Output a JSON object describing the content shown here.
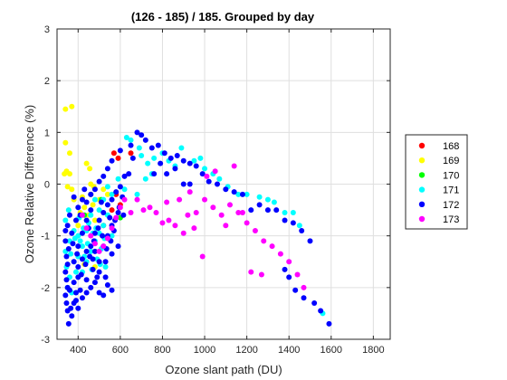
{
  "chart_data": {
    "type": "scatter",
    "title": "(126 - 185) / 185.  Grouped by day",
    "xlabel": "Ozone slant path (DU)",
    "ylabel": "Ozone Relative Difference (%)",
    "xlim": [
      300,
      1880
    ],
    "ylim": [
      -3,
      3
    ],
    "xticks": [
      400,
      600,
      800,
      1000,
      1200,
      1400,
      1600,
      1800
    ],
    "yticks": [
      -3,
      -2,
      -1,
      0,
      1,
      2,
      3
    ],
    "grid": true,
    "legend_position": "right-outside",
    "series": [
      {
        "name": "168",
        "color": "#ff0000",
        "points": [
          [
            570,
            0.6
          ],
          [
            590,
            0.5
          ],
          [
            650,
            0.6
          ],
          [
            560,
            -0.5
          ],
          [
            580,
            -0.2
          ],
          [
            600,
            -0.4
          ],
          [
            520,
            -0.8
          ]
        ]
      },
      {
        "name": "169",
        "color": "#ffff00",
        "points": [
          [
            340,
            1.45
          ],
          [
            370,
            1.5
          ],
          [
            340,
            0.8
          ],
          [
            360,
            0.6
          ],
          [
            345,
            0.25
          ],
          [
            360,
            0.2
          ],
          [
            335,
            0.2
          ],
          [
            350,
            -0.05
          ],
          [
            370,
            -0.1
          ],
          [
            430,
            -0.45
          ],
          [
            450,
            -0.6
          ],
          [
            470,
            -0.4
          ],
          [
            460,
            0.0
          ],
          [
            420,
            -0.25
          ],
          [
            440,
            0.4
          ],
          [
            480,
            -0.7
          ],
          [
            500,
            -0.3
          ],
          [
            520,
            -0.1
          ],
          [
            540,
            -0.2
          ],
          [
            400,
            -0.8
          ],
          [
            380,
            -0.3
          ],
          [
            410,
            -0.55
          ],
          [
            455,
            0.3
          ],
          [
            475,
            -0.05
          ],
          [
            430,
            -1.55
          ],
          [
            480,
            -1.6
          ]
        ]
      },
      {
        "name": "170",
        "color": "#00ff00",
        "points": [
          [
            600,
            -0.65
          ],
          [
            510,
            -0.3
          ],
          [
            460,
            -0.2
          ],
          [
            430,
            -0.6
          ]
        ]
      },
      {
        "name": "171",
        "color": "#00ffff",
        "points": [
          [
            630,
            0.9
          ],
          [
            650,
            0.85
          ],
          [
            690,
            0.7
          ],
          [
            700,
            0.55
          ],
          [
            730,
            0.4
          ],
          [
            760,
            0.5
          ],
          [
            800,
            0.6
          ],
          [
            830,
            0.45
          ],
          [
            860,
            0.35
          ],
          [
            890,
            0.7
          ],
          [
            950,
            0.45
          ],
          [
            980,
            0.5
          ],
          [
            1000,
            0.3
          ],
          [
            1040,
            0.2
          ],
          [
            1070,
            0.1
          ],
          [
            1110,
            -0.05
          ],
          [
            1160,
            -0.2
          ],
          [
            1200,
            -0.2
          ],
          [
            1260,
            -0.25
          ],
          [
            1300,
            -0.3
          ],
          [
            1330,
            -0.35
          ],
          [
            1380,
            -0.55
          ],
          [
            1420,
            -0.55
          ],
          [
            1450,
            -0.8
          ],
          [
            1560,
            -2.5
          ],
          [
            720,
            0.1
          ],
          [
            750,
            0.2
          ],
          [
            680,
            -0.2
          ],
          [
            620,
            -0.1
          ],
          [
            590,
            0.1
          ],
          [
            560,
            -0.2
          ],
          [
            540,
            -0.05
          ],
          [
            520,
            -0.3
          ],
          [
            500,
            -0.5
          ],
          [
            480,
            -0.3
          ],
          [
            460,
            -0.6
          ],
          [
            440,
            -0.9
          ],
          [
            420,
            -1.2
          ],
          [
            400,
            -1.0
          ],
          [
            380,
            -1.5
          ],
          [
            360,
            -1.8
          ],
          [
            350,
            -2.0
          ],
          [
            340,
            -1.3
          ],
          [
            360,
            -1.1
          ],
          [
            380,
            -0.9
          ],
          [
            400,
            -1.4
          ],
          [
            420,
            -1.7
          ],
          [
            440,
            -1.5
          ],
          [
            460,
            -1.3
          ],
          [
            480,
            -1.1
          ],
          [
            500,
            -0.95
          ],
          [
            520,
            -0.8
          ],
          [
            540,
            -0.6
          ],
          [
            560,
            -1.0
          ],
          [
            340,
            -0.7
          ],
          [
            355,
            -0.5
          ],
          [
            370,
            -2.1
          ],
          [
            390,
            -1.7
          ],
          [
            410,
            -1.1
          ],
          [
            430,
            -1.4
          ],
          [
            450,
            -0.75
          ],
          [
            470,
            -0.95
          ],
          [
            490,
            -1.45
          ],
          [
            510,
            -1.25
          ],
          [
            530,
            -1.6
          ],
          [
            345,
            -1.6
          ],
          [
            365,
            -1.35
          ],
          [
            385,
            -1.05
          ],
          [
            405,
            -0.65
          ],
          [
            425,
            -0.85
          ],
          [
            445,
            -1.15
          ],
          [
            465,
            -1.65
          ],
          [
            485,
            -0.85
          ],
          [
            505,
            -1.55
          ],
          [
            525,
            -1.05
          ]
        ]
      },
      {
        "name": "172",
        "color": "#0000ff",
        "points": [
          [
            680,
            1.0
          ],
          [
            700,
            0.95
          ],
          [
            720,
            0.85
          ],
          [
            750,
            0.7
          ],
          [
            780,
            0.75
          ],
          [
            810,
            0.6
          ],
          [
            840,
            0.5
          ],
          [
            870,
            0.55
          ],
          [
            900,
            0.45
          ],
          [
            930,
            0.4
          ],
          [
            960,
            0.35
          ],
          [
            990,
            0.2
          ],
          [
            1020,
            0.05
          ],
          [
            1060,
            0.0
          ],
          [
            1100,
            -0.1
          ],
          [
            1140,
            -0.15
          ],
          [
            1180,
            -0.2
          ],
          [
            1220,
            -0.5
          ],
          [
            1260,
            -0.4
          ],
          [
            1300,
            -0.5
          ],
          [
            1340,
            -0.5
          ],
          [
            1380,
            -0.7
          ],
          [
            1420,
            -0.75
          ],
          [
            1460,
            -0.9
          ],
          [
            1500,
            -1.1
          ],
          [
            1380,
            -1.65
          ],
          [
            1400,
            -1.8
          ],
          [
            1430,
            -2.05
          ],
          [
            1470,
            -2.2
          ],
          [
            1520,
            -2.3
          ],
          [
            1550,
            -2.45
          ],
          [
            1590,
            -2.7
          ],
          [
            760,
            0.2
          ],
          [
            790,
            0.4
          ],
          [
            820,
            0.2
          ],
          [
            860,
            0.3
          ],
          [
            900,
            0.0
          ],
          [
            930,
            0.0
          ],
          [
            650,
            0.75
          ],
          [
            600,
            0.65
          ],
          [
            560,
            0.45
          ],
          [
            540,
            0.3
          ],
          [
            520,
            0.15
          ],
          [
            500,
            0.05
          ],
          [
            480,
            -0.1
          ],
          [
            460,
            -0.2
          ],
          [
            440,
            -0.35
          ],
          [
            420,
            -0.3
          ],
          [
            400,
            -0.45
          ],
          [
            380,
            -0.25
          ],
          [
            360,
            -0.6
          ],
          [
            350,
            -0.8
          ],
          [
            340,
            -0.9
          ],
          [
            340,
            -1.1
          ],
          [
            345,
            -1.4
          ],
          [
            350,
            -1.55
          ],
          [
            340,
            -1.7
          ],
          [
            345,
            -1.85
          ],
          [
            350,
            -2.0
          ],
          [
            340,
            -2.15
          ],
          [
            345,
            -2.3
          ],
          [
            350,
            -2.45
          ],
          [
            355,
            -2.7
          ],
          [
            370,
            -2.55
          ],
          [
            380,
            -2.3
          ],
          [
            390,
            -2.1
          ],
          [
            400,
            -2.4
          ],
          [
            420,
            -2.2
          ],
          [
            440,
            -2.1
          ],
          [
            460,
            -2.0
          ],
          [
            480,
            -1.9
          ],
          [
            500,
            -2.1
          ],
          [
            520,
            -2.15
          ],
          [
            540,
            -1.95
          ],
          [
            560,
            -2.05
          ],
          [
            380,
            -1.5
          ],
          [
            400,
            -1.6
          ],
          [
            420,
            -1.45
          ],
          [
            440,
            -1.3
          ],
          [
            460,
            -1.2
          ],
          [
            480,
            -0.95
          ],
          [
            500,
            -0.7
          ],
          [
            520,
            -0.55
          ],
          [
            540,
            -0.4
          ],
          [
            560,
            -0.3
          ],
          [
            580,
            -0.15
          ],
          [
            600,
            -0.05
          ],
          [
            620,
            0.15
          ],
          [
            640,
            0.2
          ],
          [
            660,
            0.5
          ],
          [
            400,
            -1.2
          ],
          [
            420,
            -0.95
          ],
          [
            440,
            -0.7
          ],
          [
            460,
            -0.5
          ],
          [
            480,
            -1.3
          ],
          [
            500,
            -1.5
          ],
          [
            520,
            -1.2
          ],
          [
            540,
            -1.0
          ],
          [
            560,
            -0.8
          ],
          [
            380,
            -1.9
          ],
          [
            400,
            -1.8
          ],
          [
            360,
            -2.05
          ],
          [
            370,
            -0.95
          ],
          [
            390,
            -0.7
          ],
          [
            410,
            -0.6
          ],
          [
            430,
            -0.1
          ],
          [
            450,
            -0.85
          ],
          [
            470,
            -1.45
          ],
          [
            490,
            -1.8
          ],
          [
            510,
            -0.35
          ],
          [
            530,
            -1.5
          ],
          [
            550,
            -0.65
          ],
          [
            570,
            -0.9
          ],
          [
            590,
            -0.55
          ],
          [
            610,
            -0.25
          ],
          [
            590,
            -1.2
          ],
          [
            560,
            -1.35
          ],
          [
            530,
            -1.8
          ],
          [
            500,
            -1.7
          ],
          [
            470,
            -1.65
          ],
          [
            440,
            -1.85
          ],
          [
            410,
            -2.05
          ],
          [
            390,
            -2.25
          ],
          [
            365,
            -2.4
          ],
          [
            355,
            -1.25
          ],
          [
            375,
            -1.15
          ],
          [
            395,
            -1.35
          ],
          [
            415,
            -1.75
          ],
          [
            435,
            -1.55
          ],
          [
            455,
            -1.4
          ],
          [
            475,
            -1.1
          ],
          [
            495,
            -0.85
          ],
          [
            515,
            -1.0
          ],
          [
            535,
            -1.25
          ],
          [
            555,
            -1.1
          ],
          [
            575,
            -0.7
          ],
          [
            595,
            -0.45
          ],
          [
            615,
            -0.6
          ]
        ]
      },
      {
        "name": "173",
        "color": "#ff00ff",
        "points": [
          [
            880,
            -0.3
          ],
          [
            920,
            -0.6
          ],
          [
            960,
            -0.55
          ],
          [
            1000,
            -0.3
          ],
          [
            1040,
            -0.45
          ],
          [
            1080,
            -0.6
          ],
          [
            1120,
            -0.4
          ],
          [
            1160,
            -0.55
          ],
          [
            1200,
            -0.75
          ],
          [
            1240,
            -0.9
          ],
          [
            1280,
            -1.1
          ],
          [
            1320,
            -1.2
          ],
          [
            1360,
            -1.35
          ],
          [
            1400,
            -1.5
          ],
          [
            1440,
            -1.75
          ],
          [
            1470,
            -2.0
          ],
          [
            1270,
            -1.75
          ],
          [
            1220,
            -1.7
          ],
          [
            990,
            -1.4
          ],
          [
            950,
            -0.85
          ],
          [
            900,
            -0.95
          ],
          [
            860,
            -0.8
          ],
          [
            830,
            -0.7
          ],
          [
            800,
            -0.75
          ],
          [
            770,
            -0.55
          ],
          [
            740,
            -0.45
          ],
          [
            710,
            -0.5
          ],
          [
            680,
            -0.3
          ],
          [
            650,
            -0.55
          ],
          [
            620,
            -0.3
          ],
          [
            600,
            -0.45
          ],
          [
            580,
            -0.65
          ],
          [
            560,
            -0.85
          ],
          [
            540,
            -1.05
          ],
          [
            520,
            -1.2
          ],
          [
            500,
            -1.3
          ],
          [
            480,
            -1.15
          ],
          [
            460,
            -1.0
          ],
          [
            440,
            -0.85
          ],
          [
            420,
            -0.6
          ],
          [
            1010,
            0.15
          ],
          [
            1050,
            0.25
          ],
          [
            1140,
            0.35
          ],
          [
            1100,
            -0.8
          ],
          [
            1180,
            -0.55
          ],
          [
            930,
            -0.15
          ],
          [
            820,
            -0.35
          ]
        ]
      }
    ]
  }
}
